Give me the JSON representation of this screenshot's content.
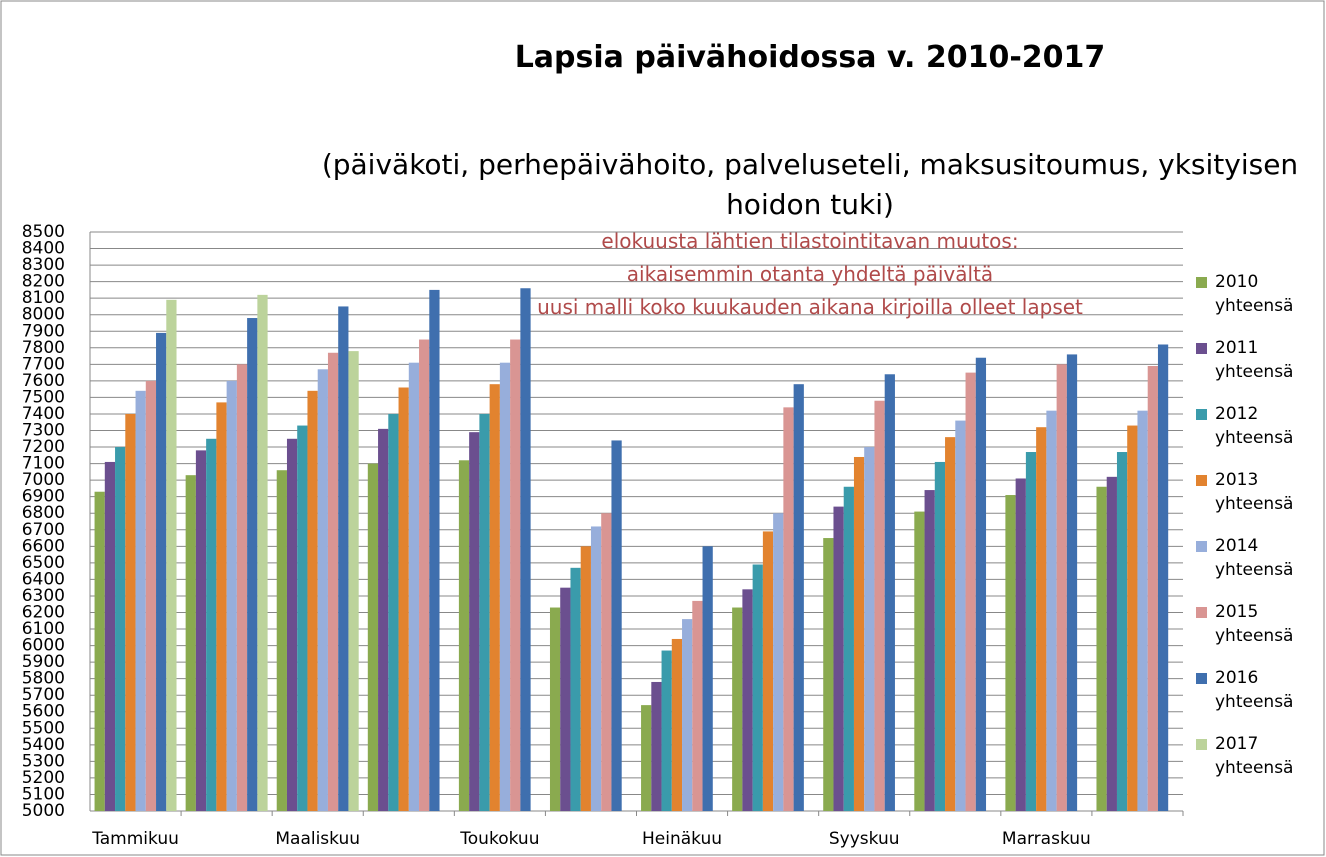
{
  "chart_data": {
    "type": "bar",
    "title": "Lapsia päivähoidossa v. 2010-2017",
    "subtitle": "(päiväkoti, perhepäivähoito, palveluseteli, maksusitoumus, yksityisen hoidon tuki)",
    "annotations": [
      "elokuusta lähtien tilastointitavan muutos:",
      "aikaisemmin otanta yhdeltä päivältä",
      "uusi malli koko kuukauden aikana kirjoilla olleet lapset"
    ],
    "categories": [
      "Tammikuu",
      null,
      "Maaliskuu",
      null,
      "Toukokuu",
      null,
      "Heinäkuu",
      null,
      "Syyskuu",
      null,
      "Marraskuu",
      null
    ],
    "series": [
      {
        "name": "2010 yhteensä",
        "color": "#8aaa4f",
        "values": [
          6930,
          7030,
          7060,
          7100,
          7120,
          6230,
          5640,
          6230,
          6650,
          6810,
          6910,
          6960
        ]
      },
      {
        "name": "2011 yhteensä",
        "color": "#6b4f8f",
        "values": [
          7110,
          7180,
          7250,
          7310,
          7290,
          6350,
          5780,
          6340,
          6840,
          6940,
          7010,
          7020
        ]
      },
      {
        "name": "2012 yhteensä",
        "color": "#3a9bab",
        "values": [
          7200,
          7250,
          7330,
          7400,
          7400,
          6470,
          5970,
          6490,
          6960,
          7110,
          7170,
          7170
        ]
      },
      {
        "name": "2013 yhteensä",
        "color": "#e2832f",
        "values": [
          7400,
          7470,
          7540,
          7560,
          7580,
          6600,
          6040,
          6690,
          7140,
          7260,
          7320,
          7330
        ]
      },
      {
        "name": "2014 yhteensä",
        "color": "#97aedb",
        "values": [
          7540,
          7600,
          7670,
          7710,
          7710,
          6720,
          6160,
          6800,
          7200,
          7360,
          7420,
          7420
        ]
      },
      {
        "name": "2015 yhteensä",
        "color": "#d99593",
        "values": [
          7600,
          7700,
          7770,
          7850,
          7850,
          6800,
          6270,
          7440,
          7480,
          7650,
          7700,
          7690
        ]
      },
      {
        "name": "2016 yhteensä",
        "color": "#3f6fae",
        "values": [
          7890,
          7980,
          8050,
          8150,
          8160,
          7240,
          6600,
          7580,
          7640,
          7740,
          7760,
          7820
        ]
      },
      {
        "name": "2017 yhteensä",
        "color": "#bcd39b",
        "values": [
          8090,
          8120,
          7780,
          null,
          null,
          null,
          null,
          null,
          null,
          null,
          null,
          null
        ]
      }
    ],
    "ylim": [
      5000,
      8500
    ],
    "yticks": [
      5000,
      5100,
      5200,
      5300,
      5400,
      5500,
      5600,
      5700,
      5800,
      5900,
      6000,
      6100,
      6200,
      6300,
      6400,
      6500,
      6600,
      6700,
      6800,
      6900,
      7000,
      7100,
      7200,
      7300,
      7400,
      7500,
      7600,
      7700,
      7800,
      7900,
      8000,
      8100,
      8200,
      8300,
      8400,
      8500
    ],
    "grid": true,
    "legend": "right"
  }
}
